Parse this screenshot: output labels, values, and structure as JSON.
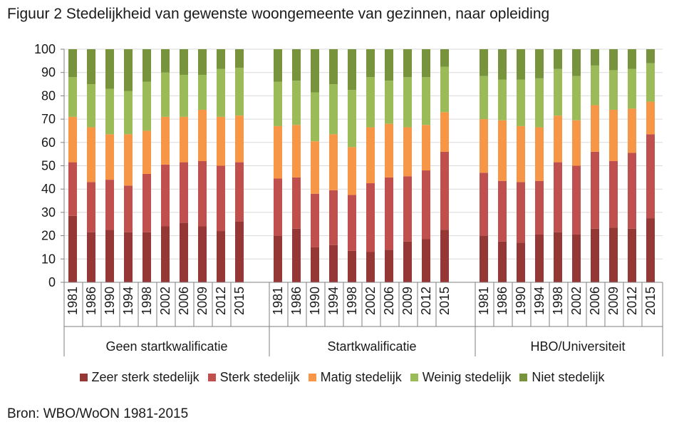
{
  "title": "Figuur 2 Stedelijkheid van gewenste woongemeente van gezinnen, naar opleiding",
  "source": "Bron: WBO/WoON 1981-2015",
  "chart_data": {
    "type": "bar",
    "stacked": true,
    "ylim": [
      0,
      100
    ],
    "yticks": [
      0,
      10,
      20,
      30,
      40,
      50,
      60,
      70,
      80,
      90,
      100
    ],
    "years": [
      "1981",
      "1986",
      "1990",
      "1994",
      "1998",
      "2002",
      "2006",
      "2009",
      "2012",
      "2015"
    ],
    "legend_position": "bottom",
    "series": [
      {
        "name": "Zeer sterk stedelijk",
        "color": "#953735"
      },
      {
        "name": "Sterk stedelijk",
        "color": "#c0504d"
      },
      {
        "name": "Matig stedelijk",
        "color": "#f79646"
      },
      {
        "name": "Weinig stedelijk",
        "color": "#9bbb59"
      },
      {
        "name": "Niet stedelijk",
        "color": "#77933c"
      }
    ],
    "groups": [
      {
        "name": "Geen startkwalificatie",
        "cumulative": [
          [
            28.5,
            51.5,
            71,
            88,
            100
          ],
          [
            21.5,
            43,
            66.5,
            85,
            100
          ],
          [
            22.5,
            44,
            63.5,
            83,
            100
          ],
          [
            21.5,
            41.5,
            63.5,
            82,
            100
          ],
          [
            21.5,
            46.5,
            65,
            86,
            100
          ],
          [
            24,
            50.5,
            71,
            90,
            100
          ],
          [
            25.5,
            51.5,
            71,
            89,
            100
          ],
          [
            24,
            52,
            74,
            89,
            100
          ],
          [
            22,
            50,
            71,
            91.5,
            100
          ],
          [
            26,
            51.5,
            71.5,
            92,
            100
          ]
        ]
      },
      {
        "name": "Startkwalificatie",
        "cumulative": [
          [
            20,
            44.5,
            67,
            86,
            100
          ],
          [
            23,
            45,
            67.5,
            86.5,
            100
          ],
          [
            15,
            38,
            60.5,
            81.5,
            100
          ],
          [
            16,
            39.5,
            63.5,
            85,
            100
          ],
          [
            13.5,
            37.5,
            58,
            82.5,
            100
          ],
          [
            13,
            42.5,
            66.5,
            88,
            100
          ],
          [
            14,
            45,
            68,
            86.5,
            100
          ],
          [
            17.5,
            45.5,
            66.5,
            88,
            100
          ],
          [
            18.5,
            48,
            67.5,
            88,
            100
          ],
          [
            22.5,
            56,
            73,
            92.5,
            100
          ]
        ]
      },
      {
        "name": "HBO/Universiteit",
        "cumulative": [
          [
            20,
            47,
            70,
            88.5,
            100
          ],
          [
            17.5,
            43.5,
            69.5,
            87,
            100
          ],
          [
            17,
            43,
            67,
            87,
            100
          ],
          [
            20.5,
            43.5,
            66.5,
            87.5,
            100
          ],
          [
            21.5,
            51.5,
            71.5,
            91.5,
            100
          ],
          [
            20.5,
            50,
            69.5,
            88.5,
            100
          ],
          [
            23,
            56,
            76,
            93,
            100
          ],
          [
            23.5,
            52,
            74,
            91,
            100
          ],
          [
            23,
            55.5,
            74.5,
            91.5,
            100
          ],
          [
            27.5,
            63.5,
            77.5,
            94,
            100
          ]
        ]
      }
    ]
  }
}
